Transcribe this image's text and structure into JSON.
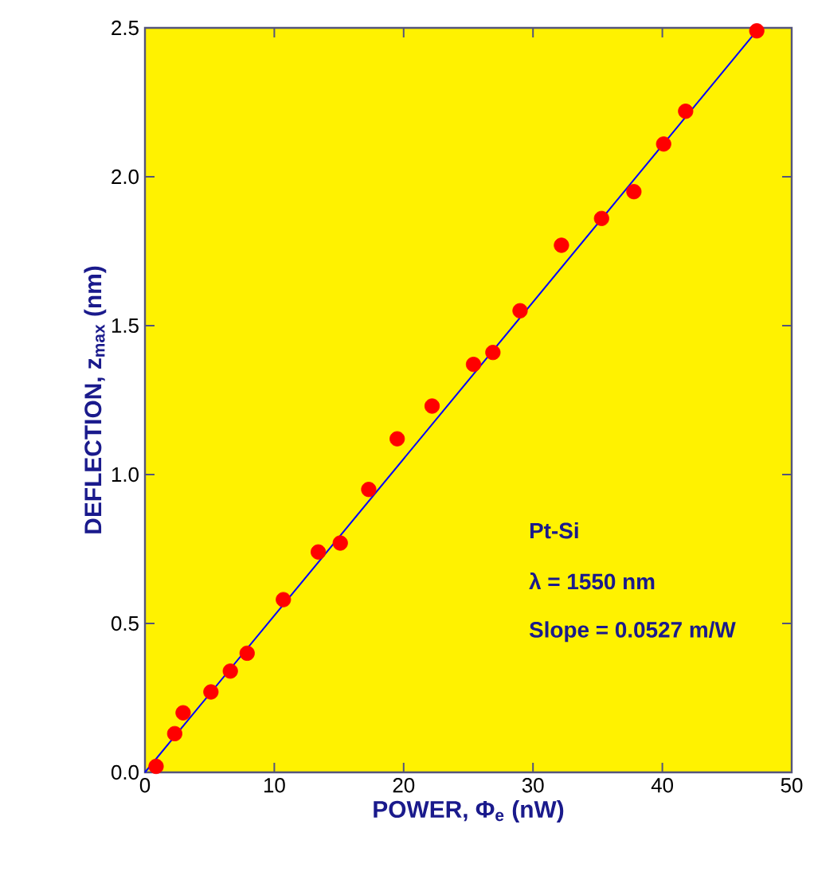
{
  "chart_data": {
    "type": "scatter",
    "xlabel": "POWER, Φ$_{e}$ (nW)",
    "ylabel": "DEFLECTION, z$_{max}$ (nm)",
    "xlim": [
      0,
      50
    ],
    "ylim": [
      0,
      2.5
    ],
    "xticks": [
      0,
      10,
      20,
      30,
      40,
      50
    ],
    "yticks": [
      {
        "value": 0,
        "label": "0.0"
      },
      {
        "value": 0.5,
        "label": "0.5"
      },
      {
        "value": 1,
        "label": "1.0"
      },
      {
        "value": 1.5,
        "label": "1.5"
      },
      {
        "value": 2,
        "label": "2.0"
      },
      {
        "value": 2.5,
        "label": "2.5"
      }
    ],
    "series": [
      {
        "color": "#ff0000",
        "marker": "circle",
        "x": [
          0.86,
          2.3,
          2.95,
          5.1,
          6.6,
          7.9,
          10.7,
          13.4,
          15.1,
          17.3,
          19.5,
          22.2,
          25.4,
          26.9,
          29.0,
          32.2,
          35.3,
          37.8,
          40.1,
          41.8,
          47.3
        ],
        "values": [
          0.02,
          0.13,
          0.2,
          0.27,
          0.34,
          0.4,
          0.58,
          0.74,
          0.77,
          0.95,
          1.12,
          1.23,
          1.37,
          1.41,
          1.55,
          1.77,
          1.86,
          1.95,
          2.11,
          2.22,
          2.49
        ]
      },
      {
        "type": "line",
        "color": "#0000ff",
        "marker": "none",
        "x": [
          0,
          47.3
        ],
        "values": [
          0,
          2.49
        ]
      }
    ],
    "annotations": [
      "Pt-Si",
      "λ = 1550 nm",
      "Slope = 0.0527 m/W"
    ],
    "grid": false
  }
}
